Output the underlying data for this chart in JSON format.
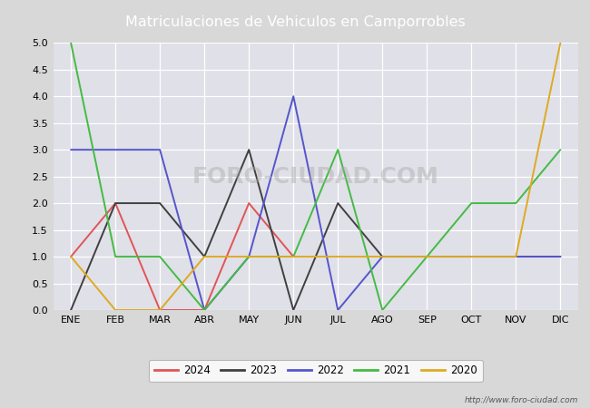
{
  "title": "Matriculaciones de Vehiculos en Camporrobles",
  "months": [
    "ENE",
    "FEB",
    "MAR",
    "ABR",
    "MAY",
    "JUN",
    "JUL",
    "AGO",
    "SEP",
    "OCT",
    "NOV",
    "DIC"
  ],
  "series": {
    "2024": {
      "color": "#e05555",
      "values": [
        1,
        2,
        0,
        0,
        2,
        1,
        null,
        null,
        null,
        null,
        null,
        null
      ]
    },
    "2023": {
      "color": "#404040",
      "values": [
        0,
        2,
        2,
        1,
        3,
        0,
        2,
        1,
        1,
        1,
        1,
        1
      ]
    },
    "2022": {
      "color": "#5555cc",
      "values": [
        3,
        3,
        3,
        0,
        1,
        4,
        0,
        1,
        1,
        1,
        1,
        1
      ]
    },
    "2021": {
      "color": "#44bb44",
      "values": [
        5,
        1,
        1,
        0,
        1,
        1,
        3,
        0,
        1,
        2,
        2,
        3
      ]
    },
    "2020": {
      "color": "#ddaa22",
      "values": [
        1,
        0,
        0,
        1,
        1,
        1,
        1,
        1,
        1,
        1,
        1,
        5
      ]
    }
  },
  "ylim": [
    0,
    5.0
  ],
  "yticks": [
    0.0,
    0.5,
    1.0,
    1.5,
    2.0,
    2.5,
    3.0,
    3.5,
    4.0,
    4.5,
    5.0
  ],
  "bg_color": "#d8d8d8",
  "plot_bg_color": "#e0e0e8",
  "title_bg_color": "#4488bb",
  "title_color": "#ffffff",
  "watermark_text": "FORO-CIUDAD.COM",
  "watermark_url": "http://www.foro-ciudad.com",
  "legend_order": [
    "2024",
    "2023",
    "2022",
    "2021",
    "2020"
  ]
}
